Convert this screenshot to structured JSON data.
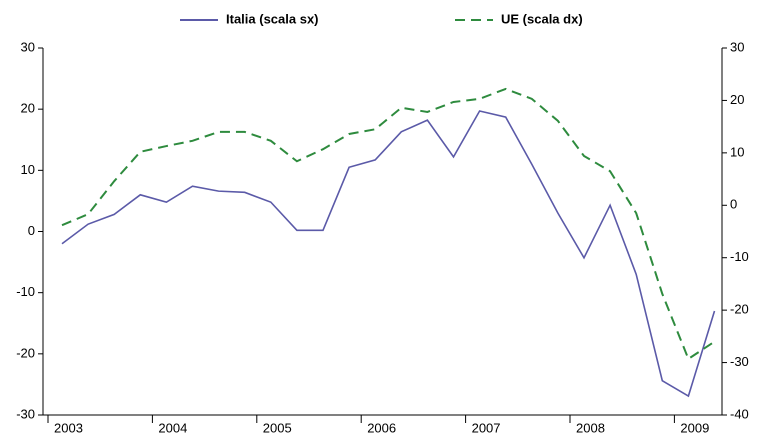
{
  "chart_data": {
    "type": "line",
    "categories": [
      "2003",
      null,
      null,
      null,
      "2004",
      null,
      null,
      null,
      "2005",
      null,
      null,
      null,
      "2006",
      null,
      null,
      null,
      "2007",
      null,
      null,
      null,
      "2008",
      null,
      null,
      null,
      "2009",
      null
    ],
    "series": [
      {
        "name": "Italia  (scala sx)",
        "color": "#5b5aa8",
        "dash": false,
        "values": [
          -2,
          1.2,
          2.8,
          6,
          4.8,
          7.4,
          6.6,
          6.4,
          4.8,
          0.2,
          0.2,
          10.5,
          11.7,
          16.3,
          18.2,
          12.2,
          19.7,
          18.7,
          11,
          3,
          -4.3,
          4.3,
          -7,
          -24.4,
          -26.9,
          -13
        ]
      },
      {
        "name": "UE  (scala dx)",
        "color": "#2e8b3e",
        "dash": true,
        "axis": "y2",
        "values": [
          -3.8,
          -1.7,
          4.6,
          10.2,
          11.3,
          12.3,
          14,
          14,
          12.3,
          8.4,
          10.7,
          13.6,
          14.5,
          18.6,
          17.8,
          19.7,
          20.3,
          22.2,
          20.3,
          16.1,
          9.4,
          6.5,
          -1.5,
          -16.9,
          -29.3,
          -26
        ]
      }
    ],
    "ylim": [
      -30,
      30
    ],
    "yticks": [
      -30,
      -20,
      -10,
      0,
      10,
      20,
      30
    ],
    "y2lim": [
      -40,
      30
    ],
    "y2ticks": [
      -40,
      -30,
      -20,
      -10,
      0,
      10,
      20,
      30
    ]
  }
}
